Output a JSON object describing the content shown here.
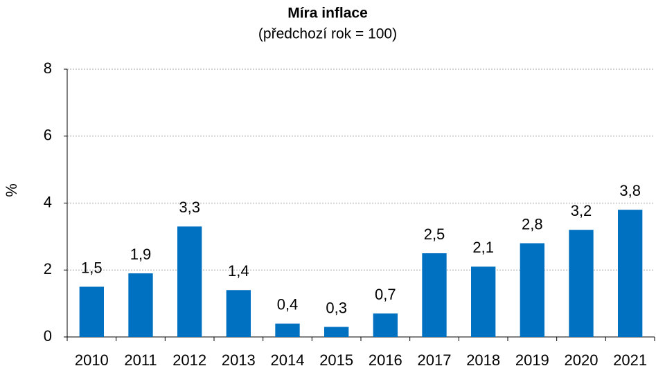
{
  "chart_data": {
    "type": "bar",
    "title": "Míra inflace",
    "subtitle": "(předchozí rok = 100)",
    "y_label": "%",
    "categories": [
      "2010",
      "2011",
      "2012",
      "2013",
      "2014",
      "2015",
      "2016",
      "2017",
      "2018",
      "2019",
      "2020",
      "2021"
    ],
    "values": [
      1.5,
      1.9,
      3.3,
      1.4,
      0.4,
      0.3,
      0.7,
      2.5,
      2.1,
      2.8,
      3.2,
      3.8
    ],
    "value_labels": [
      "1,5",
      "1,9",
      "3,3",
      "1,4",
      "0,4",
      "0,3",
      "0,7",
      "2,5",
      "2,1",
      "2,8",
      "3,2",
      "3,8"
    ],
    "color": "#0070c0",
    "ylim": [
      0,
      8
    ],
    "yticks": [
      0,
      2,
      4,
      6,
      8
    ],
    "grid": true
  }
}
